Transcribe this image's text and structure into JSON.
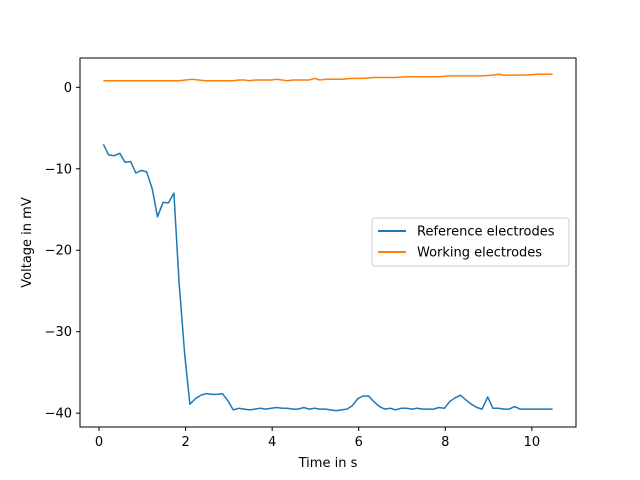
{
  "chart_data": {
    "type": "line",
    "title": "",
    "xlabel": "Time in s",
    "ylabel": "Voltage in mV",
    "xlim": [
      -0.44,
      11.02
    ],
    "ylim": [
      -41.7,
      3.6
    ],
    "xticks": [
      0,
      2,
      4,
      6,
      8,
      10
    ],
    "yticks": [
      0,
      -10,
      -20,
      -30,
      -40
    ],
    "grid": false,
    "legend_position": "center-right",
    "series": [
      {
        "name": "Reference electrodes",
        "color": "#1f77b4",
        "x": [
          0.1,
          0.22,
          0.35,
          0.48,
          0.6,
          0.73,
          0.85,
          0.98,
          1.1,
          1.23,
          1.35,
          1.48,
          1.6,
          1.73,
          1.85,
          1.98,
          2.1,
          2.23,
          2.35,
          2.48,
          2.6,
          2.73,
          2.85,
          2.98,
          3.1,
          3.23,
          3.35,
          3.48,
          3.6,
          3.73,
          3.85,
          3.98,
          4.1,
          4.23,
          4.35,
          4.48,
          4.6,
          4.73,
          4.85,
          4.98,
          5.1,
          5.23,
          5.35,
          5.48,
          5.6,
          5.73,
          5.85,
          5.98,
          6.1,
          6.23,
          6.35,
          6.48,
          6.6,
          6.73,
          6.85,
          6.98,
          7.1,
          7.23,
          7.35,
          7.48,
          7.6,
          7.73,
          7.85,
          7.98,
          8.1,
          8.23,
          8.35,
          8.48,
          8.6,
          8.73,
          8.85,
          8.98,
          9.1,
          9.23,
          9.35,
          9.48,
          9.6,
          9.73,
          9.85,
          9.98,
          10.1,
          10.23,
          10.35,
          10.48
        ],
        "y": [
          -7.0,
          -8.3,
          -8.4,
          -8.1,
          -9.2,
          -9.1,
          -10.5,
          -10.2,
          -10.4,
          -12.5,
          -15.9,
          -14.1,
          -14.2,
          -13.0,
          -24.0,
          -32.8,
          -38.9,
          -38.2,
          -37.8,
          -37.6,
          -37.7,
          -37.7,
          -37.6,
          -38.5,
          -39.6,
          -39.4,
          -39.5,
          -39.6,
          -39.5,
          -39.4,
          -39.5,
          -39.4,
          -39.3,
          -39.4,
          -39.4,
          -39.5,
          -39.5,
          -39.3,
          -39.5,
          -39.4,
          -39.5,
          -39.5,
          -39.6,
          -39.7,
          -39.6,
          -39.5,
          -39.1,
          -38.2,
          -37.9,
          -37.9,
          -38.6,
          -39.2,
          -39.5,
          -39.4,
          -39.6,
          -39.4,
          -39.4,
          -39.5,
          -39.4,
          -39.5,
          -39.5,
          -39.5,
          -39.3,
          -39.4,
          -38.6,
          -38.1,
          -37.8,
          -38.4,
          -38.9,
          -39.3,
          -39.5,
          -38.0,
          -39.4,
          -39.4,
          -39.5,
          -39.5,
          -39.2,
          -39.5,
          -39.5,
          -39.5,
          -39.5,
          -39.5,
          -39.5,
          -39.5
        ]
      },
      {
        "name": "Working electrodes",
        "color": "#ff7f0e",
        "x": [
          0.1,
          0.35,
          0.6,
          0.85,
          1.1,
          1.35,
          1.6,
          1.85,
          2.0,
          2.15,
          2.3,
          2.45,
          2.6,
          2.85,
          3.1,
          3.23,
          3.35,
          3.48,
          3.6,
          3.73,
          3.85,
          3.98,
          4.1,
          4.23,
          4.35,
          4.48,
          4.6,
          4.73,
          4.85,
          4.98,
          5.1,
          5.23,
          5.35,
          5.48,
          5.6,
          5.85,
          6.1,
          6.35,
          6.6,
          6.85,
          7.1,
          7.35,
          7.6,
          7.85,
          8.1,
          8.35,
          8.6,
          8.85,
          9.1,
          9.23,
          9.35,
          9.6,
          9.85,
          10.1,
          10.23,
          10.35,
          10.48
        ],
        "y": [
          0.8,
          0.8,
          0.8,
          0.8,
          0.8,
          0.8,
          0.8,
          0.8,
          0.9,
          1.0,
          0.9,
          0.8,
          0.8,
          0.8,
          0.8,
          0.9,
          0.9,
          0.8,
          0.9,
          0.9,
          0.9,
          0.9,
          1.0,
          0.9,
          0.8,
          0.9,
          0.9,
          0.9,
          0.9,
          1.1,
          0.9,
          1.0,
          1.0,
          1.0,
          1.0,
          1.1,
          1.1,
          1.2,
          1.2,
          1.2,
          1.3,
          1.3,
          1.3,
          1.3,
          1.4,
          1.4,
          1.4,
          1.4,
          1.5,
          1.6,
          1.5,
          1.5,
          1.5,
          1.6,
          1.6,
          1.6,
          1.6
        ]
      }
    ]
  }
}
